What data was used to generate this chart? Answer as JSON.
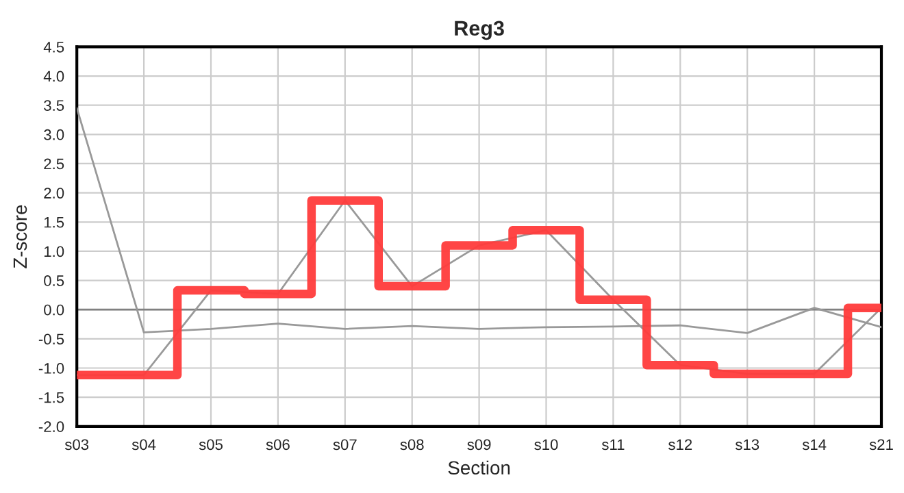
{
  "chart_data": {
    "type": "line",
    "title": "Reg3",
    "xlabel": "Section",
    "ylabel": "Z-score",
    "categories": [
      "s03",
      "s04",
      "s05",
      "s06",
      "s07",
      "s08",
      "s09",
      "s10",
      "s11",
      "s12",
      "s13",
      "s14",
      "s21"
    ],
    "series": [
      {
        "color": "#999999",
        "values": [
          3.45,
          -0.39,
          -0.33,
          -0.24,
          -0.33,
          -0.28,
          -0.33,
          -0.3,
          -0.29,
          -0.27,
          -0.4,
          0.03,
          -0.3
        ]
      },
      {
        "color": "#999999",
        "values": [
          -1.12,
          -1.12,
          0.33,
          0.27,
          1.87,
          0.4,
          1.1,
          1.36,
          0.17,
          -0.95,
          -1.1,
          -1.1,
          0.03
        ]
      },
      {
        "type": "step",
        "color": "#ff3b3b",
        "values": [
          -1.12,
          -1.12,
          0.33,
          0.27,
          1.87,
          0.4,
          1.1,
          1.36,
          0.17,
          -0.95,
          -1.1,
          -1.1,
          0.03
        ]
      }
    ],
    "ylim": [
      -2,
      4.5
    ],
    "yticks": [
      {
        "value": -2,
        "label": "-2.0"
      },
      -1.5,
      {
        "value": -1,
        "label": "-1.0"
      },
      -0.5,
      {
        "value": 0,
        "label": "0.0"
      },
      0.5,
      {
        "value": 1,
        "label": "1.0"
      },
      1.5,
      {
        "value": 2,
        "label": "2.0"
      },
      2.5,
      {
        "value": 3,
        "label": "3.0"
      },
      3.5,
      {
        "value": 4,
        "label": "4.0"
      },
      4.5
    ],
    "ref_lines": [
      {
        "axis": "y",
        "value": 0,
        "color": "#808080"
      }
    ],
    "grid": true
  }
}
